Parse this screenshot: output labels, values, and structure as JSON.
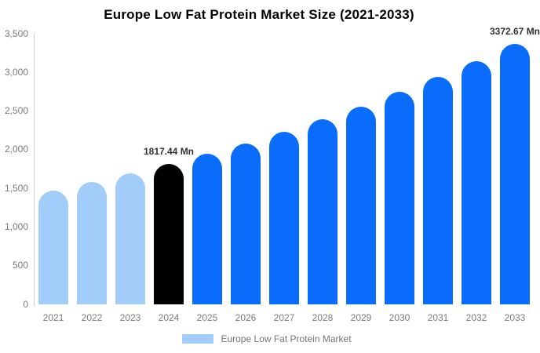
{
  "title": "Europe Low Fat Protein Market Size (2021-2033)",
  "legend": {
    "label": "Europe Low Fat Protein Market"
  },
  "chart_data": {
    "type": "bar",
    "title": "Europe Low Fat Protein Market Size (2021-2033)",
    "unit": "Mn",
    "categories": [
      "2021",
      "2022",
      "2023",
      "2024",
      "2025",
      "2026",
      "2027",
      "2028",
      "2029",
      "2030",
      "2031",
      "2032",
      "2033"
    ],
    "values": [
      1475,
      1580,
      1690,
      1817.44,
      1945,
      2080,
      2230,
      2390,
      2560,
      2745,
      2940,
      3150,
      3372.67
    ],
    "bar_colors": [
      "#A2CDFA",
      "#A2CDFA",
      "#A2CDFA",
      "#000000",
      "#0A6CFA",
      "#0A6CFA",
      "#0A6CFA",
      "#0A6CFA",
      "#0A6CFA",
      "#0A6CFA",
      "#0A6CFA",
      "#0A6CFA",
      "#0A6CFA"
    ],
    "labeled_points": [
      {
        "category": "2024",
        "label": "1817.44 Mn"
      },
      {
        "category": "2033",
        "label": "3372.67 Mn"
      }
    ],
    "xlabel": "",
    "ylabel": "",
    "ylim": [
      0,
      3500
    ],
    "ytick_labels": [
      "0",
      "500",
      "1,000",
      "1,500",
      "2,000",
      "2,500",
      "3,000",
      "3,500"
    ],
    "grid": false,
    "legend_position": "bottom",
    "colors": {
      "historical_bar": "#A2CDFA",
      "highlight_bar": "#000000",
      "forecast_bar": "#0A6CFA",
      "axis_line": "#CCCCCC",
      "tick_text": "#7B7B7B",
      "data_label_text": "#333333",
      "legend_text": "#757575",
      "title_text": "#000000",
      "background": "#FFFFFF"
    }
  }
}
